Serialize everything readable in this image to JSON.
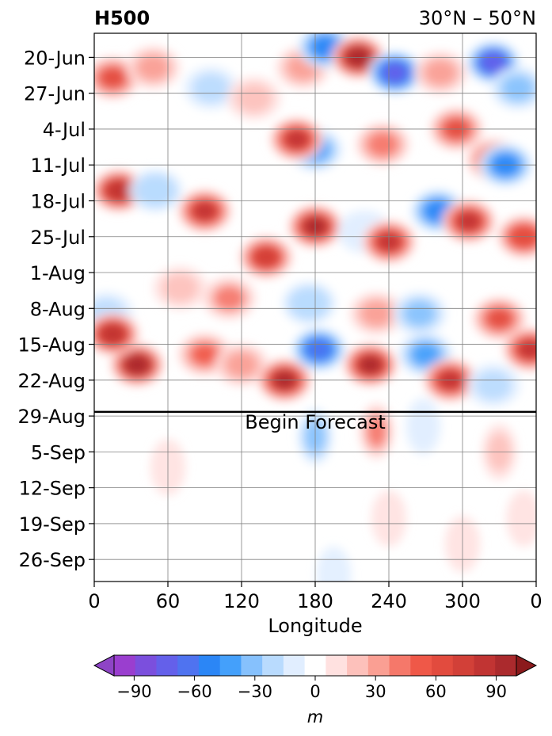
{
  "chart_data": {
    "type": "heatmap",
    "title_left": "H500",
    "title_right": "30°N – 50°N",
    "xlabel": "Longitude",
    "ylabel": "",
    "x_ticks": [
      "0",
      "60",
      "120",
      "180",
      "240",
      "300",
      "0"
    ],
    "x_tick_values": [
      0,
      60,
      120,
      180,
      240,
      300,
      360
    ],
    "xlim": [
      0,
      360
    ],
    "y_ticks": [
      "20-Jun",
      "27-Jun",
      "4-Jul",
      "11-Jul",
      "18-Jul",
      "25-Jul",
      "1-Aug",
      "8-Aug",
      "15-Aug",
      "22-Aug",
      "29-Aug",
      "5-Sep",
      "12-Sep",
      "19-Sep",
      "26-Sep"
    ],
    "y_tick_days": [
      0,
      7,
      14,
      21,
      28,
      35,
      42,
      49,
      56,
      63,
      70,
      77,
      84,
      91,
      98
    ],
    "ylim_days": [
      -4.7,
      102.3
    ],
    "forecast_start_day": 69.2,
    "forecast_label": "Begin Forecast",
    "grid": true,
    "colorbar": {
      "label": "m",
      "levels": [
        -100,
        -90,
        -80,
        -70,
        -60,
        -50,
        -40,
        -30,
        -20,
        -10,
        10,
        20,
        30,
        40,
        50,
        60,
        70,
        80,
        90,
        100
      ],
      "tick_labels": [
        "−90",
        "−60",
        "−30",
        "0",
        "30",
        "60",
        "90"
      ],
      "tick_values": [
        -90,
        -60,
        -30,
        0,
        30,
        60,
        90
      ],
      "colors": [
        "#9a3ecf",
        "#7b4fdd",
        "#6460ea",
        "#4f73f0",
        "#2b86f6",
        "#44a0fb",
        "#86c1fd",
        "#b9dbfe",
        "#e1eeff",
        "#ffffff",
        "#ffe1e0",
        "#fdc1bb",
        "#fa9f93",
        "#f5786a",
        "#ef5848",
        "#e24b3e",
        "#d24038",
        "#c13433",
        "#ab2a2d"
      ],
      "under_color": "#8e44c6",
      "over_color": "#8b1a1c"
    },
    "anomalies": [
      {
        "lon": 15,
        "day": 4,
        "value": 60
      },
      {
        "lon": 48,
        "day": 2,
        "value": 35
      },
      {
        "lon": 95,
        "day": 6,
        "value": -25
      },
      {
        "lon": 130,
        "day": 8,
        "value": 25
      },
      {
        "lon": 170,
        "day": 2,
        "value": 30
      },
      {
        "lon": 188,
        "day": -2,
        "value": -60
      },
      {
        "lon": 215,
        "day": 0,
        "value": 95
      },
      {
        "lon": 245,
        "day": 3,
        "value": -80
      },
      {
        "lon": 282,
        "day": 3,
        "value": 35
      },
      {
        "lon": 325,
        "day": 1,
        "value": -75
      },
      {
        "lon": 345,
        "day": 6,
        "value": -40
      },
      {
        "lon": 180,
        "day": 18,
        "value": -45
      },
      {
        "lon": 165,
        "day": 16,
        "value": 80
      },
      {
        "lon": 235,
        "day": 17,
        "value": 45
      },
      {
        "lon": 295,
        "day": 14,
        "value": 60
      },
      {
        "lon": 325,
        "day": 20,
        "value": 55
      },
      {
        "lon": 280,
        "day": 30,
        "value": -55
      },
      {
        "lon": 335,
        "day": 21,
        "value": -60
      },
      {
        "lon": 20,
        "day": 26,
        "value": 85
      },
      {
        "lon": 50,
        "day": 26,
        "value": -30
      },
      {
        "lon": 90,
        "day": 30,
        "value": 80
      },
      {
        "lon": 140,
        "day": 39,
        "value": 75
      },
      {
        "lon": 180,
        "day": 33,
        "value": 90
      },
      {
        "lon": 220,
        "day": 34,
        "value": -20
      },
      {
        "lon": 240,
        "day": 36,
        "value": 80
      },
      {
        "lon": 305,
        "day": 32,
        "value": 80
      },
      {
        "lon": 350,
        "day": 35,
        "value": 65
      },
      {
        "lon": 230,
        "day": 50,
        "value": 35
      },
      {
        "lon": 175,
        "day": 48,
        "value": -30
      },
      {
        "lon": 70,
        "day": 45,
        "value": 20
      },
      {
        "lon": 110,
        "day": 47,
        "value": 40
      },
      {
        "lon": 330,
        "day": 51,
        "value": 60
      },
      {
        "lon": 10,
        "day": 50,
        "value": -25
      },
      {
        "lon": 265,
        "day": 50,
        "value": -40
      },
      {
        "lon": 35,
        "day": 60,
        "value": 95
      },
      {
        "lon": 15,
        "day": 54,
        "value": 85
      },
      {
        "lon": 90,
        "day": 58,
        "value": 50
      },
      {
        "lon": 120,
        "day": 60,
        "value": 35
      },
      {
        "lon": 155,
        "day": 63,
        "value": 90
      },
      {
        "lon": 183,
        "day": 57,
        "value": -70
      },
      {
        "lon": 225,
        "day": 60,
        "value": 90
      },
      {
        "lon": 270,
        "day": 58,
        "value": -45
      },
      {
        "lon": 290,
        "day": 63,
        "value": 80
      },
      {
        "lon": 355,
        "day": 57,
        "value": 80
      },
      {
        "lon": 325,
        "day": 64,
        "value": -25
      },
      {
        "lon": 180,
        "day": 74,
        "value": -40
      },
      {
        "lon": 230,
        "day": 73,
        "value": 40
      },
      {
        "lon": 268,
        "day": 72,
        "value": -20
      },
      {
        "lon": 330,
        "day": 77,
        "value": 20
      },
      {
        "lon": 60,
        "day": 80,
        "value": 10
      },
      {
        "lon": 350,
        "day": 90,
        "value": 12
      },
      {
        "lon": 240,
        "day": 90,
        "value": 11
      },
      {
        "lon": 300,
        "day": 95,
        "value": 15
      },
      {
        "lon": 195,
        "day": 101,
        "value": -15
      }
    ]
  }
}
